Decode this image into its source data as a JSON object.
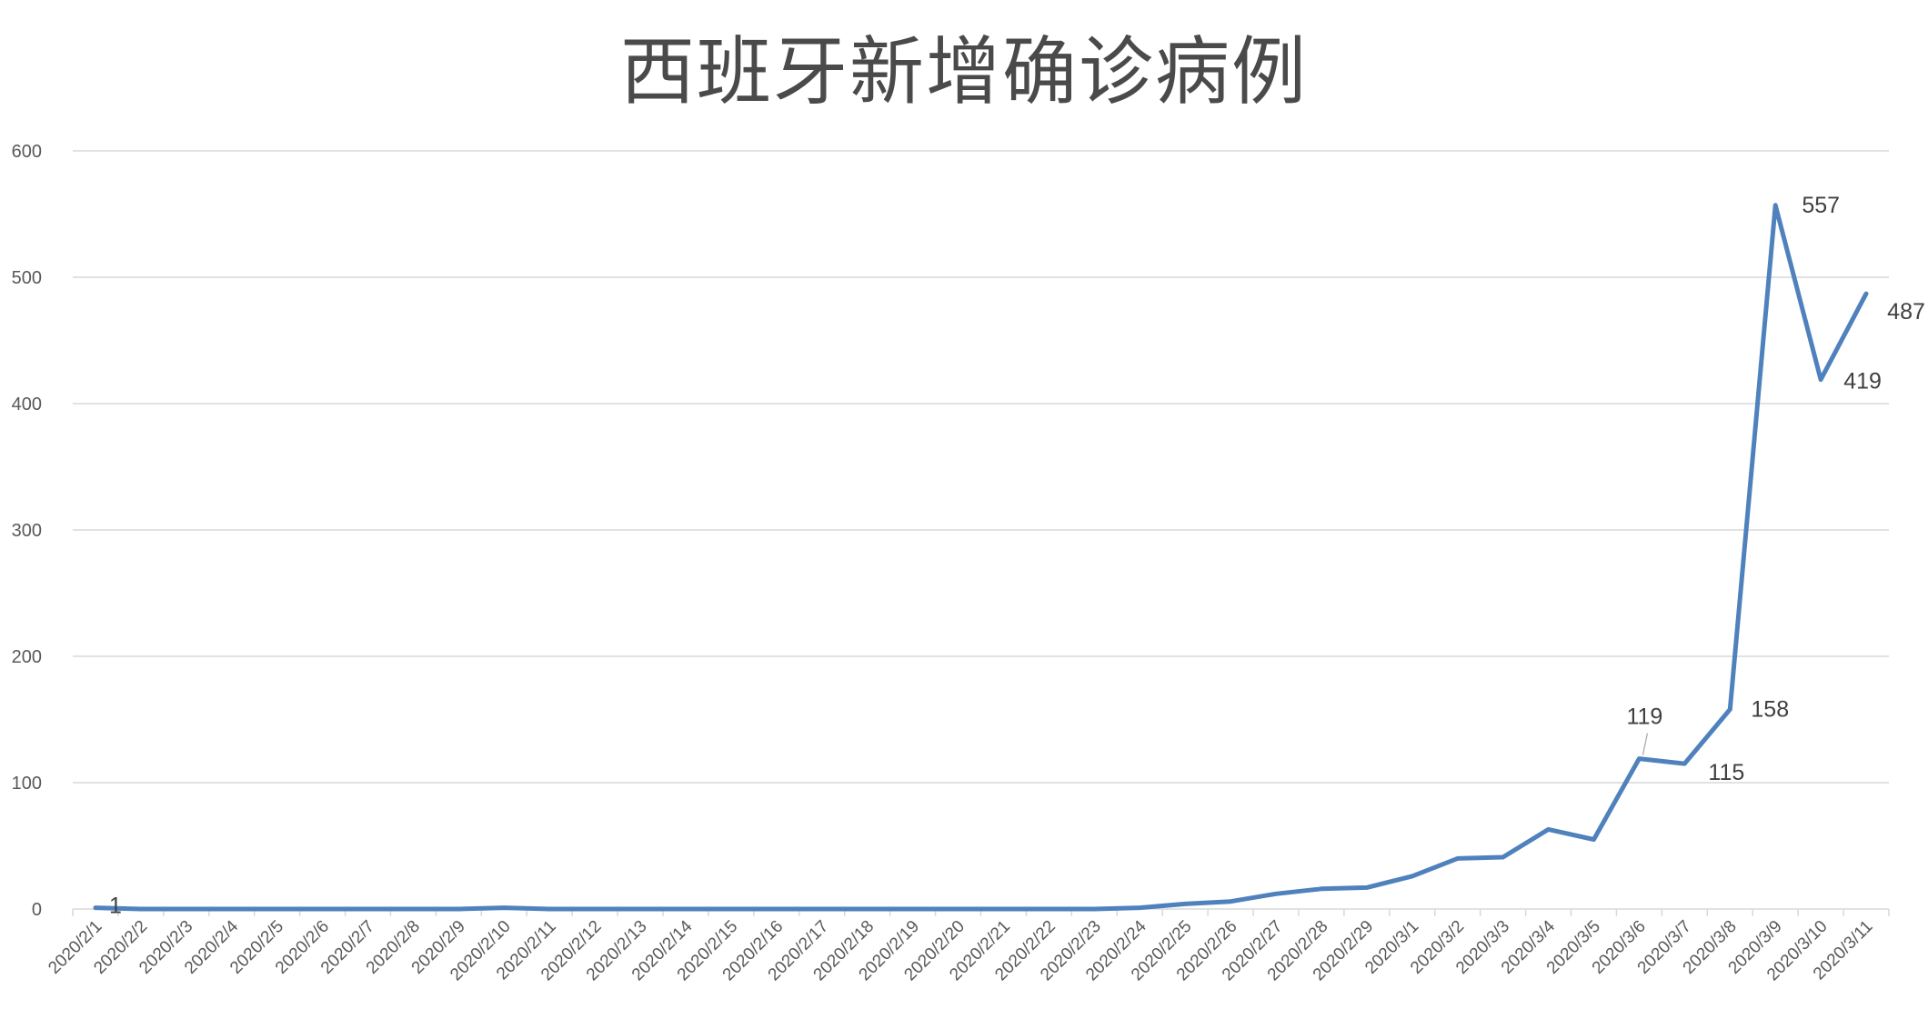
{
  "chart_data": {
    "type": "line",
    "title": "西班牙新增确诊病例",
    "xlabel": "",
    "ylabel": "",
    "ylim": [
      0,
      600
    ],
    "yticks": [
      0,
      100,
      200,
      300,
      400,
      500,
      600
    ],
    "grid": true,
    "legend": "none",
    "categories": [
      "2020/2/1",
      "2020/2/2",
      "2020/2/3",
      "2020/2/4",
      "2020/2/5",
      "2020/2/6",
      "2020/2/7",
      "2020/2/8",
      "2020/2/9",
      "2020/2/10",
      "2020/2/11",
      "2020/2/12",
      "2020/2/13",
      "2020/2/14",
      "2020/2/15",
      "2020/2/16",
      "2020/2/17",
      "2020/2/18",
      "2020/2/19",
      "2020/2/20",
      "2020/2/21",
      "2020/2/22",
      "2020/2/23",
      "2020/2/24",
      "2020/2/25",
      "2020/2/26",
      "2020/2/27",
      "2020/2/28",
      "2020/2/29",
      "2020/3/1",
      "2020/3/2",
      "2020/3/3",
      "2020/3/4",
      "2020/3/5",
      "2020/3/6",
      "2020/3/7",
      "2020/3/8",
      "2020/3/9",
      "2020/3/10",
      "2020/3/11"
    ],
    "series": [
      {
        "color": "#4f81bd",
        "values": [
          1,
          0,
          0,
          0,
          0,
          0,
          0,
          0,
          0,
          1,
          0,
          0,
          0,
          0,
          0,
          0,
          0,
          0,
          0,
          0,
          0,
          0,
          0,
          1,
          4,
          6,
          12,
          16,
          17,
          26,
          40,
          41,
          63,
          55,
          119,
          115,
          158,
          557,
          419,
          487
        ]
      }
    ],
    "data_labels": [
      {
        "index": 0,
        "text": "1"
      },
      {
        "index": 34,
        "text": "119"
      },
      {
        "index": 35,
        "text": "115"
      },
      {
        "index": 36,
        "text": "158"
      },
      {
        "index": 37,
        "text": "557"
      },
      {
        "index": 38,
        "text": "419"
      },
      {
        "index": 39,
        "text": "487"
      }
    ]
  }
}
